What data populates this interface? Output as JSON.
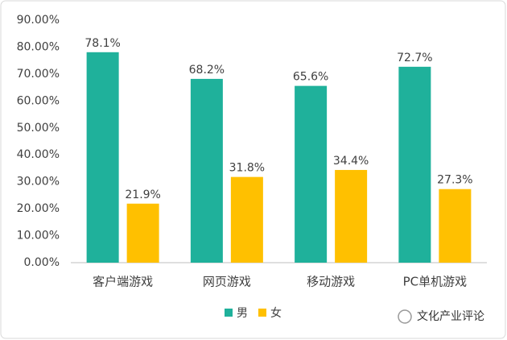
{
  "chart_data": {
    "type": "bar",
    "categories": [
      "客户端游戏",
      "网页游戏",
      "移动游戏",
      "PC单机游戏"
    ],
    "series": [
      {
        "name": "男",
        "color": "#1fb19b",
        "values": [
          78.1,
          68.2,
          65.6,
          72.7
        ],
        "value_labels": [
          "78.1%",
          "68.2%",
          "65.6%",
          "72.7%"
        ]
      },
      {
        "name": "女",
        "color": "#ffc000",
        "values": [
          21.9,
          31.8,
          34.4,
          27.3
        ],
        "value_labels": [
          "21.9%",
          "31.8%",
          "34.4%",
          "27.3%"
        ]
      }
    ],
    "ylim": [
      0,
      90
    ],
    "yticks": [
      {
        "value": 0,
        "label": "0.00%"
      },
      {
        "value": 10,
        "label": "10.00%"
      },
      {
        "value": 20,
        "label": "20.00%"
      },
      {
        "value": 30,
        "label": "30.00%"
      },
      {
        "value": 40,
        "label": "40.00%"
      },
      {
        "value": 50,
        "label": "50.00%"
      },
      {
        "value": 60,
        "label": "60.00%"
      },
      {
        "value": 70,
        "label": "70.00%"
      },
      {
        "value": 80,
        "label": "80.00%"
      },
      {
        "value": 90,
        "label": "90.00%"
      }
    ],
    "grid": false,
    "legend": "bottom",
    "watermark": "文化产业评论"
  }
}
